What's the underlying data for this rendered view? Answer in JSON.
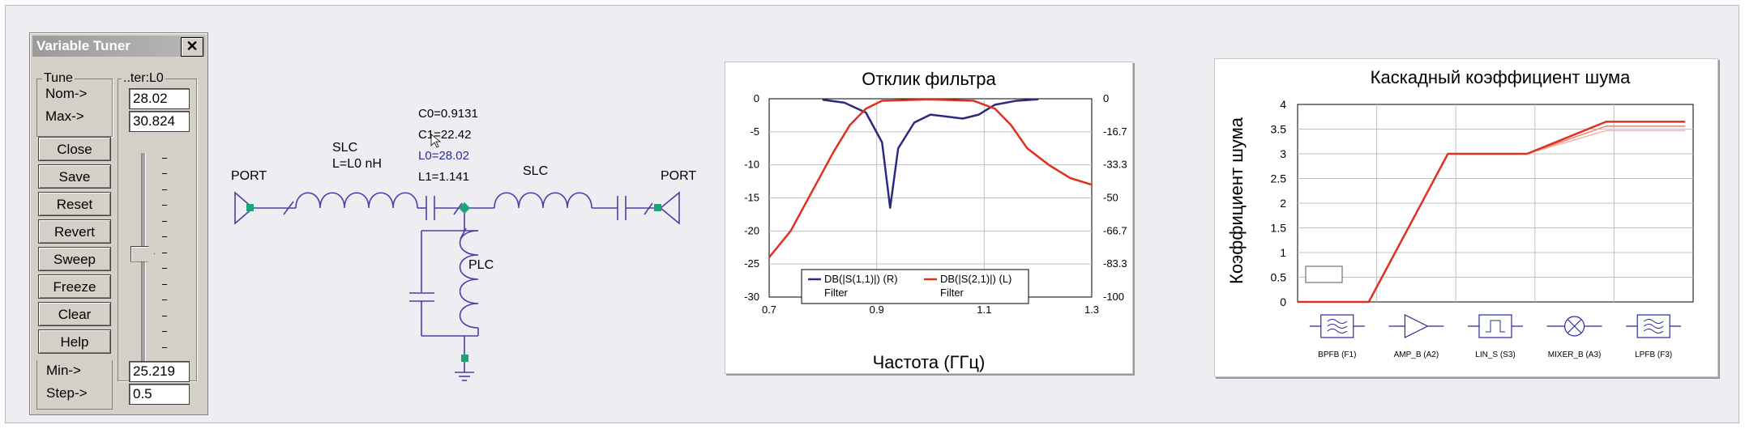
{
  "tuner": {
    "title": "Variable Tuner",
    "close_glyph": "✕",
    "tune_group": "Tune",
    "param_group": "..ter:L0",
    "nom_label": "Nom->",
    "max_label": "Max->",
    "nom_value": "28.02",
    "max_value": "30.824",
    "buttons": [
      "Close",
      "Save",
      "Reset",
      "Revert",
      "Sweep",
      "Freeze",
      "Clear",
      "Help"
    ],
    "min_label": "Min->",
    "step_label": "Step->",
    "min_value": "25.219",
    "step_value": "0.5",
    "slider_level": 0.53
  },
  "schematic": {
    "port_left": "PORT",
    "port_right": "PORT",
    "slc1_name": "SLC",
    "slc1_value": "L=L0 nH",
    "slc2_name": "SLC",
    "plc_name": "PLC",
    "c0": "C0=0.9131",
    "c1": "C1=22.42",
    "l0": "L0=28.02",
    "l1": "L1=1.141",
    "wire_color": "#4a3fa8",
    "node_color": "#1fa37a"
  },
  "chart_data": [
    {
      "type": "line",
      "title": "Отклик фильтра",
      "xlabel": "Частота (ГГц)",
      "ylabel": "",
      "xlim": [
        0.7,
        1.3
      ],
      "ylim": [
        -30,
        0
      ],
      "y2lim": [
        -100,
        0
      ],
      "x_ticks": [
        "0.7",
        "0.9",
        "1.1",
        "1.3"
      ],
      "y_ticks": [
        "0",
        "-5",
        "-10",
        "-15",
        "-20",
        "-25",
        "-30"
      ],
      "y2_ticks": [
        "0",
        "-16.7",
        "-33.3",
        "-50",
        "-66.7",
        "-83.3",
        "-100"
      ],
      "legend_placement": "bottom",
      "series": [
        {
          "name": "DB(|S(1,1)|) (R)",
          "name2": "Filter",
          "axis": "right",
          "color": "#2a2a80",
          "x": [
            0.8,
            0.84,
            0.88,
            0.91,
            0.925,
            0.94,
            0.97,
            1.0,
            1.03,
            1.06,
            1.09,
            1.12,
            1.16,
            1.2
          ],
          "y": [
            -0.5,
            -2,
            -7,
            -22,
            -55,
            -25,
            -12,
            -8,
            -9,
            -10,
            -8,
            -3,
            -1,
            -0.3
          ]
        },
        {
          "name": "DB(|S(2,1)|) (L)",
          "name2": "Filter",
          "axis": "left",
          "color": "#e03020",
          "x": [
            0.7,
            0.74,
            0.78,
            0.82,
            0.85,
            0.88,
            0.91,
            1.0,
            1.08,
            1.12,
            1.15,
            1.18,
            1.22,
            1.26,
            1.3
          ],
          "y": [
            -24,
            -20,
            -14,
            -8,
            -4,
            -1.5,
            -0.3,
            -0.1,
            -0.3,
            -1.5,
            -4,
            -7.5,
            -10,
            -12,
            -13
          ]
        }
      ]
    },
    {
      "type": "line",
      "title": "Каскадный коэффициент шума",
      "xlabel": "",
      "ylabel": "Коэффициент шума",
      "ylim": [
        0,
        4
      ],
      "y_ticks": [
        "0",
        "0.5",
        "1",
        "1.5",
        "2",
        "2.5",
        "3",
        "3.5",
        "4"
      ],
      "categories": [
        "BPFB (F1)",
        "AMP_B (A2)",
        "LIN_S (S3)",
        "MIXER_B (A3)",
        "LPFB (F3)"
      ],
      "series": [
        {
          "name": "",
          "color": "#e03020",
          "x": [
            0,
            0.9,
            1.9,
            2.9,
            3.9,
            4.9
          ],
          "y": [
            0,
            0,
            3,
            3,
            3.65,
            3.65
          ]
        }
      ]
    }
  ]
}
